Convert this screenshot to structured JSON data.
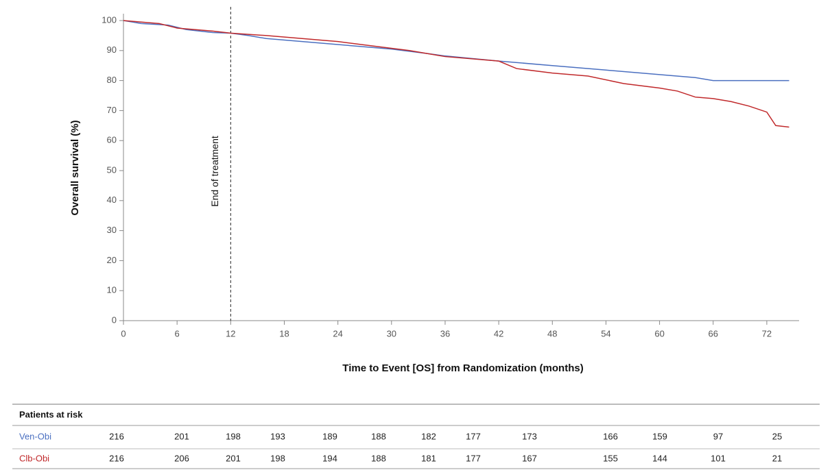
{
  "chart_data": {
    "type": "line",
    "xlabel": "Time to Event [OS] from Randomization (months)",
    "ylabel": "Overall survival (%)",
    "annotation": {
      "x": 12,
      "text": "End of treatment"
    },
    "xlim": [
      0,
      75
    ],
    "ylim": [
      0,
      100
    ],
    "xticks": [
      0,
      6,
      12,
      18,
      24,
      30,
      36,
      42,
      48,
      54,
      60,
      66,
      72
    ],
    "yticks": [
      0,
      10,
      20,
      30,
      40,
      50,
      60,
      70,
      80,
      90,
      100
    ],
    "series": [
      {
        "name": "Ven-Obi",
        "color": "#4a6fc0",
        "x": [
          0,
          1,
          2,
          5,
          7,
          10,
          12,
          14,
          16,
          20,
          26,
          30,
          34,
          36,
          42,
          48,
          54,
          60,
          64,
          66,
          74.5
        ],
        "values": [
          100,
          99.5,
          99,
          98.5,
          97,
          96,
          95.8,
          95,
          94,
          93,
          91.5,
          90.5,
          89,
          88.2,
          86.5,
          85,
          83.5,
          82,
          81,
          80,
          80
        ],
        "at_risk": [
          216,
          201,
          198,
          193,
          189,
          188,
          182,
          177,
          173,
          166,
          159,
          97,
          25
        ]
      },
      {
        "name": "Clb-Obi",
        "color": "#c0282a",
        "x": [
          0,
          4,
          6,
          10,
          12,
          16,
          24,
          28,
          32,
          36,
          42,
          44,
          48,
          52,
          56,
          60,
          62,
          64,
          66,
          68,
          70,
          72,
          73,
          74.5
        ],
        "values": [
          100,
          99,
          97.5,
          96.5,
          95.8,
          95,
          93,
          91.5,
          90,
          88,
          86.5,
          84,
          82.5,
          81.5,
          79,
          77.5,
          76.5,
          74.5,
          74,
          73,
          71.5,
          69.5,
          65,
          64.5
        ],
        "at_risk": [
          216,
          206,
          201,
          198,
          194,
          188,
          181,
          177,
          167,
          155,
          144,
          101,
          21
        ]
      }
    ],
    "risk_table_title": "Patients at risk"
  }
}
